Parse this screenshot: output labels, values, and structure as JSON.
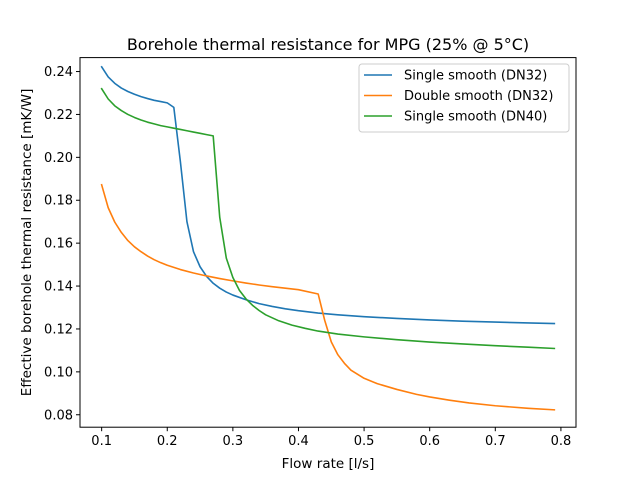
{
  "chart_data": {
    "type": "line",
    "title": "Borehole thermal resistance for MPG (25% @ 5°C)",
    "xlabel": "Flow rate [l/s]",
    "ylabel": "Effective borehole thermal resistance [mK/W]",
    "xlim": [
      0.067,
      0.823
    ],
    "ylim": [
      0.0742,
      0.2465
    ],
    "xticks": [
      0.1,
      0.2,
      0.3,
      0.4,
      0.5,
      0.6,
      0.7,
      0.8
    ],
    "xtick_labels": [
      "0.1",
      "0.2",
      "0.3",
      "0.4",
      "0.5",
      "0.6",
      "0.7",
      "0.8"
    ],
    "yticks": [
      0.08,
      0.1,
      0.12,
      0.14,
      0.16,
      0.18,
      0.2,
      0.22,
      0.24
    ],
    "ytick_labels": [
      "0.08",
      "0.10",
      "0.12",
      "0.14",
      "0.16",
      "0.18",
      "0.20",
      "0.22",
      "0.24"
    ],
    "grid": false,
    "legend_position": "top-right",
    "series": [
      {
        "name": "Single smooth (DN32)",
        "color": "#1f77b4",
        "points": [
          [
            0.1,
            0.2422
          ],
          [
            0.11,
            0.2375
          ],
          [
            0.12,
            0.2345
          ],
          [
            0.13,
            0.2323
          ],
          [
            0.14,
            0.2307
          ],
          [
            0.15,
            0.2294
          ],
          [
            0.16,
            0.2283
          ],
          [
            0.17,
            0.2274
          ],
          [
            0.18,
            0.2266
          ],
          [
            0.19,
            0.226
          ],
          [
            0.2,
            0.2254
          ],
          [
            0.21,
            0.2233
          ],
          [
            0.22,
            0.198
          ],
          [
            0.23,
            0.17
          ],
          [
            0.24,
            0.156
          ],
          [
            0.25,
            0.149
          ],
          [
            0.26,
            0.1445
          ],
          [
            0.27,
            0.1413
          ],
          [
            0.28,
            0.139
          ],
          [
            0.29,
            0.1372
          ],
          [
            0.3,
            0.1358
          ],
          [
            0.32,
            0.1336
          ],
          [
            0.34,
            0.1318
          ],
          [
            0.36,
            0.1305
          ],
          [
            0.38,
            0.1294
          ],
          [
            0.4,
            0.1285
          ],
          [
            0.43,
            0.1274
          ],
          [
            0.46,
            0.1266
          ],
          [
            0.5,
            0.1257
          ],
          [
            0.55,
            0.1249
          ],
          [
            0.6,
            0.1242
          ],
          [
            0.65,
            0.1236
          ],
          [
            0.7,
            0.1232
          ],
          [
            0.75,
            0.1228
          ],
          [
            0.79,
            0.1225
          ]
        ]
      },
      {
        "name": "Double smooth (DN32)",
        "color": "#ff7f0e",
        "points": [
          [
            0.1,
            0.1872
          ],
          [
            0.11,
            0.1765
          ],
          [
            0.12,
            0.1698
          ],
          [
            0.13,
            0.165
          ],
          [
            0.14,
            0.1612
          ],
          [
            0.15,
            0.1583
          ],
          [
            0.16,
            0.156
          ],
          [
            0.17,
            0.154
          ],
          [
            0.18,
            0.1523
          ],
          [
            0.19,
            0.1509
          ],
          [
            0.2,
            0.1497
          ],
          [
            0.22,
            0.1477
          ],
          [
            0.24,
            0.1461
          ],
          [
            0.26,
            0.1447
          ],
          [
            0.28,
            0.1435
          ],
          [
            0.3,
            0.1424
          ],
          [
            0.32,
            0.1414
          ],
          [
            0.34,
            0.1405
          ],
          [
            0.36,
            0.1397
          ],
          [
            0.38,
            0.139
          ],
          [
            0.4,
            0.1383
          ],
          [
            0.43,
            0.1363
          ],
          [
            0.44,
            0.124
          ],
          [
            0.45,
            0.114
          ],
          [
            0.46,
            0.108
          ],
          [
            0.47,
            0.104
          ],
          [
            0.48,
            0.1008
          ],
          [
            0.5,
            0.097
          ],
          [
            0.52,
            0.0945
          ],
          [
            0.55,
            0.0918
          ],
          [
            0.58,
            0.0895
          ],
          [
            0.6,
            0.0883
          ],
          [
            0.63,
            0.0868
          ],
          [
            0.66,
            0.0855
          ],
          [
            0.7,
            0.0842
          ],
          [
            0.75,
            0.083
          ],
          [
            0.79,
            0.0823
          ]
        ]
      },
      {
        "name": "Single smooth (DN40)",
        "color": "#2ca02c",
        "points": [
          [
            0.1,
            0.232
          ],
          [
            0.11,
            0.2272
          ],
          [
            0.12,
            0.224
          ],
          [
            0.13,
            0.2218
          ],
          [
            0.14,
            0.22
          ],
          [
            0.15,
            0.2186
          ],
          [
            0.16,
            0.2174
          ],
          [
            0.17,
            0.2164
          ],
          [
            0.18,
            0.2156
          ],
          [
            0.19,
            0.2148
          ],
          [
            0.2,
            0.2142
          ],
          [
            0.21,
            0.2136
          ],
          [
            0.22,
            0.213
          ],
          [
            0.23,
            0.2124
          ],
          [
            0.24,
            0.2118
          ],
          [
            0.25,
            0.2112
          ],
          [
            0.26,
            0.2106
          ],
          [
            0.27,
            0.21
          ],
          [
            0.28,
            0.172
          ],
          [
            0.29,
            0.153
          ],
          [
            0.3,
            0.144
          ],
          [
            0.31,
            0.138
          ],
          [
            0.32,
            0.134
          ],
          [
            0.33,
            0.131
          ],
          [
            0.34,
            0.1286
          ],
          [
            0.35,
            0.1266
          ],
          [
            0.37,
            0.1238
          ],
          [
            0.39,
            0.1218
          ],
          [
            0.41,
            0.1203
          ],
          [
            0.43,
            0.119
          ],
          [
            0.46,
            0.1176
          ],
          [
            0.5,
            0.1163
          ],
          [
            0.55,
            0.115
          ],
          [
            0.6,
            0.1139
          ],
          [
            0.65,
            0.113
          ],
          [
            0.7,
            0.1122
          ],
          [
            0.75,
            0.1115
          ],
          [
            0.79,
            0.1109
          ]
        ]
      }
    ]
  }
}
